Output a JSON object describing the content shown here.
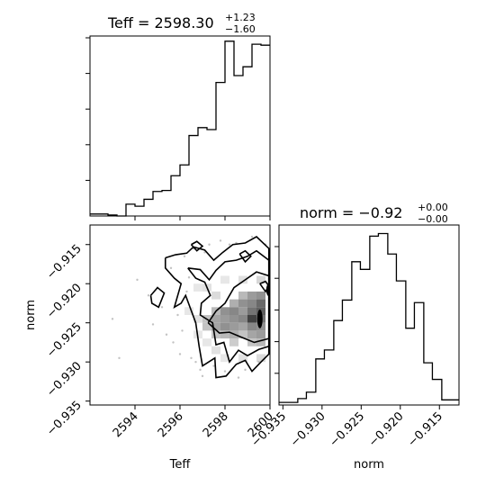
{
  "chart_data": [
    {
      "type": "histogram",
      "panel": "teff-histogram",
      "title_base": "Teff = 2598.30",
      "title_sup": "+1.23",
      "title_sub": "−1.60",
      "xlim": [
        2592.0,
        2600.0
      ],
      "bin_edges": [
        2592.0,
        2592.4,
        2592.8,
        2593.2,
        2593.6,
        2594.0,
        2594.4,
        2594.8,
        2595.2,
        2595.6,
        2596.0,
        2596.4,
        2596.8,
        2597.2,
        2597.6,
        2598.0,
        2598.4,
        2598.8,
        2599.2,
        2599.6,
        2600.0
      ],
      "counts": [
        2,
        2,
        1,
        0,
        12,
        10,
        17,
        25,
        26,
        41,
        52,
        82,
        90,
        88,
        136,
        178,
        143,
        152,
        175,
        174
      ]
    },
    {
      "type": "histogram",
      "panel": "norm-histogram",
      "title_base": "norm = −0.92",
      "title_sup": "+0.00",
      "title_sub": "−0.00",
      "xlim": [
        -0.9355,
        -0.9125
      ],
      "bin_edges": [
        -0.9355,
        -0.9343,
        -0.9331,
        -0.932,
        -0.9308,
        -0.9297,
        -0.9285,
        -0.9274,
        -0.9262,
        -0.9251,
        -0.9239,
        -0.9228,
        -0.9216,
        -0.9205,
        -0.9193,
        -0.9182,
        -0.917,
        -0.9159,
        -0.9147,
        -0.9136,
        -0.9125
      ],
      "counts": [
        2,
        2,
        5,
        10,
        36,
        43,
        66,
        82,
        112,
        106,
        132,
        134,
        118,
        97,
        60,
        80,
        33,
        20,
        4,
        4
      ],
      "xticks": [
        "−0.935",
        "−0.930",
        "−0.925",
        "−0.920",
        "−0.915"
      ],
      "xtick_values": [
        -0.935,
        -0.93,
        -0.925,
        -0.92,
        -0.915
      ],
      "xlabel": "norm"
    },
    {
      "type": "contour",
      "panel": "teff-vs-norm",
      "xlim": [
        2592.0,
        2600.0
      ],
      "ylim": [
        -0.9355,
        -0.9125
      ],
      "xticks": [
        "2594",
        "2596",
        "2598",
        "2600"
      ],
      "xtick_values": [
        2594,
        2596,
        2598,
        2600
      ],
      "yticks": [
        "−0.915",
        "−0.920",
        "−0.925",
        "−0.930",
        "−0.935"
      ],
      "ytick_values": [
        -0.915,
        -0.92,
        -0.925,
        -0.93,
        -0.935
      ],
      "xlabel": "Teff",
      "ylabel": "norm",
      "density_cells": [
        [
          2598.8,
          -0.9215,
          0.35
        ],
        [
          2599.2,
          -0.9215,
          0.5
        ],
        [
          2599.6,
          -0.9215,
          0.55
        ],
        [
          2598.4,
          -0.9225,
          0.4
        ],
        [
          2598.8,
          -0.9225,
          0.55
        ],
        [
          2599.2,
          -0.9225,
          0.6
        ],
        [
          2599.6,
          -0.9225,
          0.75
        ],
        [
          2597.6,
          -0.9235,
          0.35
        ],
        [
          2598.0,
          -0.9235,
          0.55
        ],
        [
          2598.4,
          -0.9235,
          0.6
        ],
        [
          2598.8,
          -0.9235,
          0.5
        ],
        [
          2599.2,
          -0.9235,
          0.7
        ],
        [
          2599.6,
          -0.9235,
          0.8
        ],
        [
          2597.2,
          -0.9245,
          0.3
        ],
        [
          2597.6,
          -0.9245,
          0.45
        ],
        [
          2598.0,
          -0.9245,
          0.5
        ],
        [
          2598.4,
          -0.9245,
          0.55
        ],
        [
          2598.8,
          -0.9245,
          0.6
        ],
        [
          2599.2,
          -0.9245,
          0.95
        ],
        [
          2599.6,
          -0.9245,
          0.7
        ],
        [
          2597.2,
          -0.9255,
          0.3
        ],
        [
          2597.6,
          -0.9255,
          0.45
        ],
        [
          2598.0,
          -0.9255,
          0.55
        ],
        [
          2598.4,
          -0.9255,
          0.5
        ],
        [
          2598.8,
          -0.9255,
          0.45
        ],
        [
          2599.2,
          -0.9255,
          0.6
        ],
        [
          2599.6,
          -0.9255,
          0.55
        ],
        [
          2597.6,
          -0.9265,
          0.3
        ],
        [
          2598.0,
          -0.9265,
          0.35
        ],
        [
          2598.4,
          -0.9265,
          0.4
        ],
        [
          2598.8,
          -0.9265,
          0.3
        ],
        [
          2599.2,
          -0.9265,
          0.45
        ],
        [
          2599.6,
          -0.9265,
          0.5
        ],
        [
          2598.4,
          -0.9275,
          0.25
        ],
        [
          2599.2,
          -0.9275,
          0.3
        ],
        [
          2599.6,
          -0.9275,
          0.35
        ],
        [
          2596.8,
          -0.9205,
          0.12
        ],
        [
          2597.2,
          -0.9205,
          0.15
        ],
        [
          2597.6,
          -0.9215,
          0.18
        ],
        [
          2596.4,
          -0.9235,
          0.12
        ],
        [
          2596.8,
          -0.9245,
          0.15
        ],
        [
          2596.8,
          -0.9265,
          0.12
        ],
        [
          2597.2,
          -0.9275,
          0.12
        ],
        [
          2597.6,
          -0.9285,
          0.15
        ],
        [
          2598.0,
          -0.9295,
          0.12
        ],
        [
          2598.8,
          -0.9295,
          0.15
        ],
        [
          2599.6,
          -0.9295,
          0.18
        ],
        [
          2598.0,
          -0.9195,
          0.12
        ],
        [
          2598.8,
          -0.9195,
          0.15
        ],
        [
          2599.6,
          -0.9195,
          0.2
        ]
      ],
      "scatter_points": [
        [
          2593.0,
          -0.9245
        ],
        [
          2593.3,
          -0.9295
        ],
        [
          2594.1,
          -0.9195
        ],
        [
          2594.6,
          -0.9215
        ],
        [
          2595.0,
          -0.9205
        ],
        [
          2595.4,
          -0.9265
        ],
        [
          2595.6,
          -0.918
        ],
        [
          2595.9,
          -0.924
        ],
        [
          2596.0,
          -0.929
        ],
        [
          2596.2,
          -0.9165
        ],
        [
          2596.3,
          -0.921
        ],
        [
          2596.5,
          -0.9295
        ],
        [
          2596.6,
          -0.9155
        ],
        [
          2596.7,
          -0.93
        ],
        [
          2596.9,
          -0.931
        ],
        [
          2597.1,
          -0.916
        ],
        [
          2597.3,
          -0.915
        ],
        [
          2597.5,
          -0.9305
        ],
        [
          2597.8,
          -0.9145
        ],
        [
          2598.0,
          -0.9312
        ],
        [
          2598.2,
          -0.915
        ],
        [
          2598.5,
          -0.9148
        ],
        [
          2598.9,
          -0.931
        ],
        [
          2599.2,
          -0.914
        ],
        [
          2599.5,
          -0.93
        ],
        [
          2594.8,
          -0.9252
        ],
        [
          2595.2,
          -0.923
        ],
        [
          2595.7,
          -0.9275
        ],
        [
          2596.1,
          -0.926
        ],
        [
          2596.4,
          -0.9192
        ],
        [
          2597.0,
          -0.9318
        ],
        [
          2598.6,
          -0.932
        ],
        [
          2599.8,
          -0.915
        ]
      ],
      "contours": [
        [
          [
            2595.35,
            -0.9167
          ],
          [
            2595.8,
            -0.9163
          ],
          [
            2596.3,
            -0.9161
          ],
          [
            2596.6,
            -0.9153
          ],
          [
            2597.1,
            -0.9157
          ],
          [
            2597.5,
            -0.917
          ],
          [
            2597.9,
            -0.916
          ],
          [
            2598.35,
            -0.915
          ],
          [
            2598.9,
            -0.9148
          ],
          [
            2599.4,
            -0.914
          ],
          [
            2599.95,
            -0.9155
          ],
          [
            2599.95,
            -0.929
          ],
          [
            2599.6,
            -0.93
          ],
          [
            2599.2,
            -0.9312
          ],
          [
            2598.9,
            -0.9298
          ],
          [
            2598.5,
            -0.9303
          ],
          [
            2598.05,
            -0.9318
          ],
          [
            2597.6,
            -0.932
          ],
          [
            2597.55,
            -0.9295
          ],
          [
            2597.0,
            -0.9305
          ],
          [
            2596.85,
            -0.928
          ],
          [
            2596.7,
            -0.925
          ],
          [
            2596.25,
            -0.9215
          ],
          [
            2596.05,
            -0.9225
          ],
          [
            2595.75,
            -0.923
          ],
          [
            2596.05,
            -0.92
          ],
          [
            2595.75,
            -0.9193
          ],
          [
            2595.35,
            -0.918
          ],
          [
            2595.35,
            -0.9167
          ]
        ],
        [
          [
            2596.35,
            -0.918
          ],
          [
            2596.9,
            -0.9182
          ],
          [
            2597.3,
            -0.9195
          ],
          [
            2597.6,
            -0.9183
          ],
          [
            2598.0,
            -0.9172
          ],
          [
            2598.5,
            -0.917
          ],
          [
            2599.0,
            -0.9165
          ],
          [
            2599.4,
            -0.9158
          ],
          [
            2599.95,
            -0.917
          ],
          [
            2599.95,
            -0.928
          ],
          [
            2599.5,
            -0.9284
          ],
          [
            2599.0,
            -0.9292
          ],
          [
            2598.6,
            -0.9285
          ],
          [
            2598.2,
            -0.93
          ],
          [
            2597.95,
            -0.9275
          ],
          [
            2597.6,
            -0.9278
          ],
          [
            2597.45,
            -0.925
          ],
          [
            2596.9,
            -0.924
          ],
          [
            2596.95,
            -0.9225
          ],
          [
            2597.35,
            -0.9215
          ],
          [
            2597.1,
            -0.9198
          ],
          [
            2596.7,
            -0.9193
          ],
          [
            2596.35,
            -0.918
          ]
        ],
        [
          [
            2597.25,
            -0.925
          ],
          [
            2597.6,
            -0.9235
          ],
          [
            2598.0,
            -0.9225
          ],
          [
            2598.4,
            -0.9205
          ],
          [
            2598.9,
            -0.9195
          ],
          [
            2599.4,
            -0.9185
          ],
          [
            2599.95,
            -0.919
          ],
          [
            2599.95,
            -0.927
          ],
          [
            2599.3,
            -0.9275
          ],
          [
            2598.7,
            -0.9268
          ],
          [
            2598.2,
            -0.9262
          ],
          [
            2597.75,
            -0.9263
          ],
          [
            2597.25,
            -0.925
          ]
        ],
        [
          [
            2594.7,
            -0.9215
          ],
          [
            2595.0,
            -0.9205
          ],
          [
            2595.3,
            -0.9212
          ],
          [
            2595.05,
            -0.923
          ],
          [
            2594.75,
            -0.9225
          ],
          [
            2594.7,
            -0.9215
          ]
        ],
        [
          [
            2598.65,
            -0.9162
          ],
          [
            2598.9,
            -0.9158
          ],
          [
            2599.15,
            -0.9165
          ],
          [
            2598.9,
            -0.9172
          ],
          [
            2598.65,
            -0.9162
          ]
        ],
        [
          [
            2596.5,
            -0.915
          ],
          [
            2596.75,
            -0.9146
          ],
          [
            2597.0,
            -0.9152
          ],
          [
            2596.75,
            -0.9158
          ],
          [
            2596.5,
            -0.915
          ]
        ],
        [
          [
            2599.55,
            -0.92
          ],
          [
            2599.8,
            -0.9197
          ],
          [
            2599.95,
            -0.9203
          ],
          [
            2599.8,
            -0.921
          ],
          [
            2599.55,
            -0.92
          ]
        ]
      ],
      "dark_blobs": [
        [
          2599.55,
          -0.9245,
          0.12,
          0.0012
        ],
        [
          2599.95,
          -0.9208,
          0.12,
          0.0008
        ]
      ]
    }
  ]
}
